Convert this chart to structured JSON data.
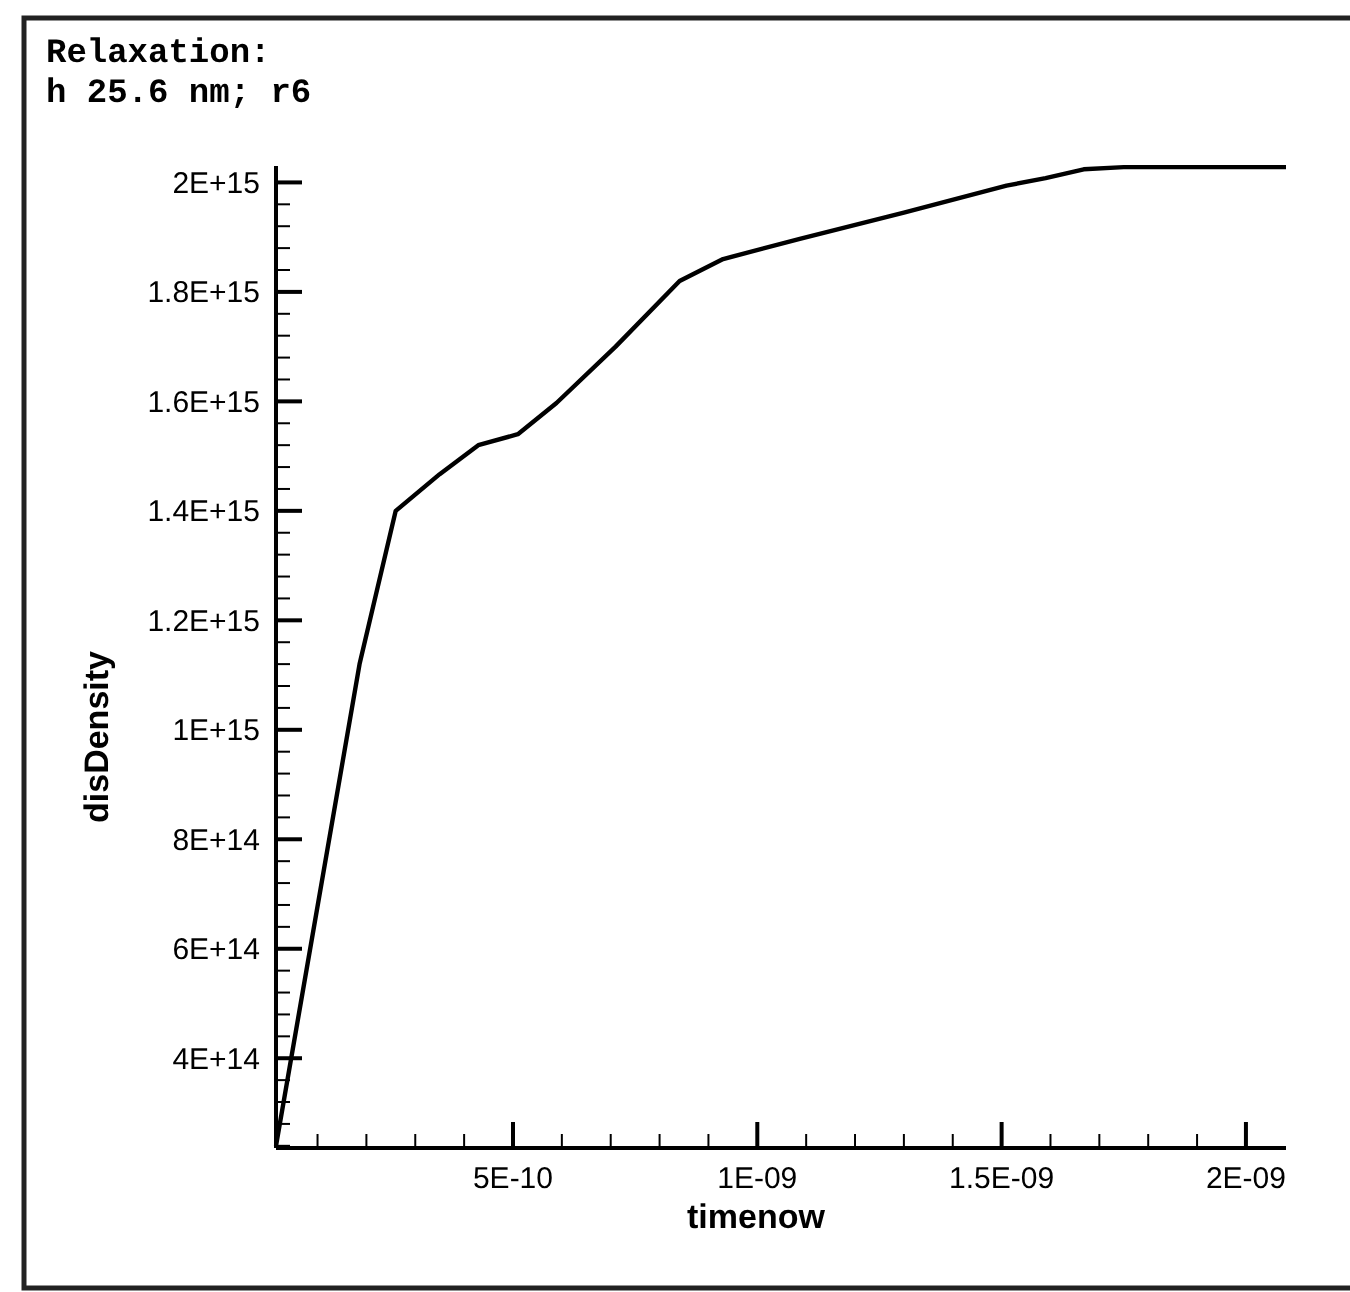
{
  "chart_data": {
    "type": "line",
    "title": "Relaxation:\nh 25.6 nm; r6",
    "xlabel": "timenow",
    "ylabel": "disDensity",
    "xlim": [
      1.5e-11,
      2.082e-09
    ],
    "ylim": [
      236000000000000.0,
      2030000000000000.0
    ],
    "xticks": [
      {
        "value": 1e-10,
        "label": null
      },
      {
        "value": 2e-10,
        "label": null
      },
      {
        "value": 3e-10,
        "label": null
      },
      {
        "value": 4e-10,
        "label": null
      },
      {
        "value": 5e-10,
        "label": "5E-10"
      },
      {
        "value": 6e-10,
        "label": null
      },
      {
        "value": 7e-10,
        "label": null
      },
      {
        "value": 8e-10,
        "label": null
      },
      {
        "value": 9e-10,
        "label": null
      },
      {
        "value": 1e-09,
        "label": "1E-09"
      },
      {
        "value": 1.1e-09,
        "label": null
      },
      {
        "value": 1.2e-09,
        "label": null
      },
      {
        "value": 1.3e-09,
        "label": null
      },
      {
        "value": 1.4e-09,
        "label": null
      },
      {
        "value": 1.5e-09,
        "label": "1.5E-09"
      },
      {
        "value": 1.6e-09,
        "label": null
      },
      {
        "value": 1.7e-09,
        "label": null
      },
      {
        "value": 1.8e-09,
        "label": null
      },
      {
        "value": 1.9e-09,
        "label": null
      },
      {
        "value": 2e-09,
        "label": "2E-09"
      }
    ],
    "yticks": [
      {
        "value": 240000000000000.0,
        "label": null
      },
      {
        "value": 280000000000000.0,
        "label": null
      },
      {
        "value": 320000000000000.0,
        "label": null
      },
      {
        "value": 360000000000000.0,
        "label": null
      },
      {
        "value": 400000000000000.0,
        "label": "4E+14"
      },
      {
        "value": 440000000000000.0,
        "label": null
      },
      {
        "value": 480000000000000.0,
        "label": null
      },
      {
        "value": 520000000000000.0,
        "label": null
      },
      {
        "value": 560000000000000.0,
        "label": null
      },
      {
        "value": 600000000000000.0,
        "label": "6E+14"
      },
      {
        "value": 640000000000000.0,
        "label": null
      },
      {
        "value": 680000000000000.0,
        "label": null
      },
      {
        "value": 720000000000000.0,
        "label": null
      },
      {
        "value": 760000000000000.0,
        "label": null
      },
      {
        "value": 800000000000000.0,
        "label": "8E+14"
      },
      {
        "value": 840000000000000.0,
        "label": null
      },
      {
        "value": 880000000000000.0,
        "label": null
      },
      {
        "value": 920000000000000.0,
        "label": null
      },
      {
        "value": 960000000000000.0,
        "label": null
      },
      {
        "value": 1000000000000000.0,
        "label": "1E+15"
      },
      {
        "value": 1040000000000000.0,
        "label": null
      },
      {
        "value": 1080000000000000.0,
        "label": null
      },
      {
        "value": 1120000000000000.0,
        "label": null
      },
      {
        "value": 1160000000000000.0,
        "label": null
      },
      {
        "value": 1200000000000000.0,
        "label": "1.2E+15"
      },
      {
        "value": 1240000000000000.0,
        "label": null
      },
      {
        "value": 1280000000000000.0,
        "label": null
      },
      {
        "value": 1320000000000000.0,
        "label": null
      },
      {
        "value": 1360000000000000.0,
        "label": null
      },
      {
        "value": 1400000000000000.0,
        "label": "1.4E+15"
      },
      {
        "value": 1440000000000000.0,
        "label": null
      },
      {
        "value": 1480000000000000.0,
        "label": null
      },
      {
        "value": 1520000000000000.0,
        "label": null
      },
      {
        "value": 1560000000000000.0,
        "label": null
      },
      {
        "value": 1600000000000000.0,
        "label": "1.6E+15"
      },
      {
        "value": 1640000000000000.0,
        "label": null
      },
      {
        "value": 1680000000000000.0,
        "label": null
      },
      {
        "value": 1720000000000000.0,
        "label": null
      },
      {
        "value": 1760000000000000.0,
        "label": null
      },
      {
        "value": 1800000000000000.0,
        "label": "1.8E+15"
      },
      {
        "value": 1840000000000000.0,
        "label": null
      },
      {
        "value": 1880000000000000.0,
        "label": null
      },
      {
        "value": 1920000000000000.0,
        "label": null
      },
      {
        "value": 1960000000000000.0,
        "label": null
      },
      {
        "value": 2000000000000000.0,
        "label": "2E+15"
      }
    ],
    "x": [
      1.5e-11,
      1.86e-10,
      2.6e-10,
      3.5e-10,
      4.29e-10,
      5.1e-10,
      5.89e-10,
      7.1e-10,
      8.41e-10,
      9.3e-10,
      1.087e-09,
      1.3e-09,
      1.51e-09,
      1.59e-09,
      1.668e-09,
      1.75e-09,
      2.082e-09
    ],
    "series": [
      {
        "color": "#000000",
        "values": [
          240000000000000.0,
          1120000000000000.0,
          1400000000000000.0,
          1467000000000000.0,
          1520000000000000.0,
          1540000000000000.0,
          1597000000000000.0,
          1700000000000000.0,
          1820000000000000.0,
          1860000000000000.0,
          1897000000000000.0,
          1945000000000000.0,
          1994000000000000.0,
          2008000000000000.0,
          2024000000000000.0,
          2028000000000000.0,
          2028000000000000.0
        ]
      }
    ],
    "grid": false,
    "marker": "none",
    "line_style": "solid"
  }
}
